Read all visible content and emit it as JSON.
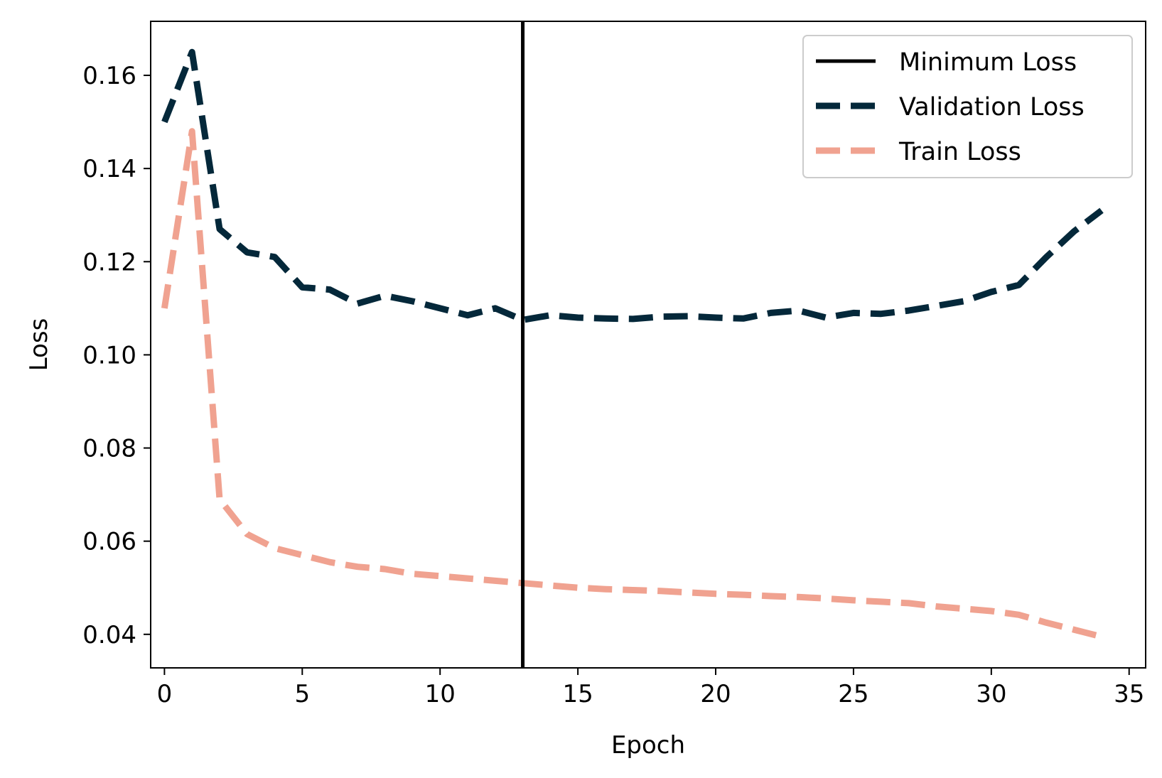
{
  "chart_data": {
    "type": "line",
    "title": "",
    "xlabel": "Epoch",
    "ylabel": "Loss",
    "xlim": [
      -0.5,
      35.6
    ],
    "ylim": [
      0.0328,
      0.1716
    ],
    "xticks": [
      0,
      5,
      10,
      15,
      20,
      25,
      30,
      35
    ],
    "yticks": [
      0.04,
      0.06,
      0.08,
      0.1,
      0.12,
      0.14,
      0.16
    ],
    "ytick_labels": [
      "0.04",
      "0.06",
      "0.08",
      "0.10",
      "0.12",
      "0.14",
      "0.16"
    ],
    "grid": false,
    "legend_position": "top-right",
    "vertical_line": {
      "name": "Minimum Loss",
      "x": 13,
      "color": "#000000"
    },
    "series": [
      {
        "name": "Validation Loss",
        "color": "#04283a",
        "style": "dashed",
        "x": [
          0,
          1,
          2,
          3,
          4,
          5,
          6,
          7,
          8,
          9,
          10,
          11,
          12,
          13,
          14,
          15,
          16,
          17,
          18,
          19,
          20,
          21,
          22,
          23,
          24,
          25,
          26,
          27,
          28,
          29,
          30,
          31,
          32,
          33,
          34
        ],
        "values": [
          0.15,
          0.165,
          0.127,
          0.122,
          0.121,
          0.1145,
          0.114,
          0.111,
          0.1127,
          0.1115,
          0.11,
          0.1085,
          0.11,
          0.1075,
          0.1085,
          0.108,
          0.1078,
          0.1077,
          0.1082,
          0.1083,
          0.108,
          0.1078,
          0.109,
          0.1095,
          0.108,
          0.109,
          0.1088,
          0.1095,
          0.1105,
          0.1115,
          0.1135,
          0.115,
          0.121,
          0.1265,
          0.131
        ]
      },
      {
        "name": "Train Loss",
        "color": "#f0a290",
        "style": "dashed",
        "x": [
          0,
          1,
          2,
          3,
          4,
          5,
          6,
          7,
          8,
          9,
          10,
          11,
          12,
          13,
          14,
          15,
          16,
          17,
          18,
          19,
          20,
          21,
          22,
          23,
          24,
          25,
          26,
          27,
          28,
          29,
          30,
          31,
          32,
          33,
          34
        ],
        "values": [
          0.11,
          0.148,
          0.069,
          0.0615,
          0.0585,
          0.057,
          0.0555,
          0.0545,
          0.054,
          0.053,
          0.0525,
          0.052,
          0.0515,
          0.051,
          0.0505,
          0.05,
          0.0497,
          0.0495,
          0.0493,
          0.049,
          0.0487,
          0.0485,
          0.0482,
          0.048,
          0.0477,
          0.0473,
          0.047,
          0.0467,
          0.046,
          0.0455,
          0.045,
          0.0442,
          0.0425,
          0.041,
          0.0395
        ]
      }
    ],
    "legend": {
      "items": [
        {
          "label": "Minimum Loss",
          "color": "#000000",
          "style": "solid"
        },
        {
          "label": "Validation Loss",
          "color": "#04283a",
          "style": "dashed"
        },
        {
          "label": "Train Loss",
          "color": "#f0a290",
          "style": "dashed"
        }
      ]
    }
  }
}
